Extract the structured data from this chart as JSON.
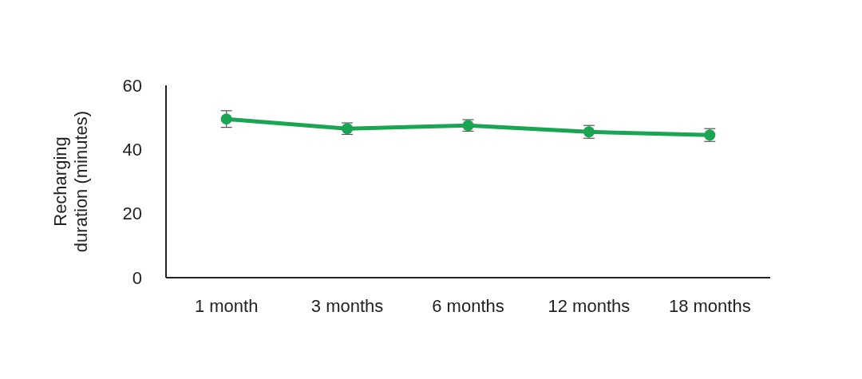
{
  "chart_data": {
    "type": "line",
    "ylabel": "Recharging duration (minutes)",
    "categories": [
      "1 month",
      "3 months",
      "6 months",
      "12 months",
      "18 months"
    ],
    "series": [
      {
        "color": "#1aa553",
        "values": [
          49.5,
          46.5,
          47.5,
          45.5,
          44.5
        ],
        "errors": [
          2.6,
          1.8,
          1.8,
          2,
          2
        ]
      }
    ],
    "ylim": [
      0,
      60
    ],
    "yticks": [
      0,
      20,
      40,
      60
    ],
    "grid": false,
    "marker": "circle",
    "line_style": "solid"
  }
}
